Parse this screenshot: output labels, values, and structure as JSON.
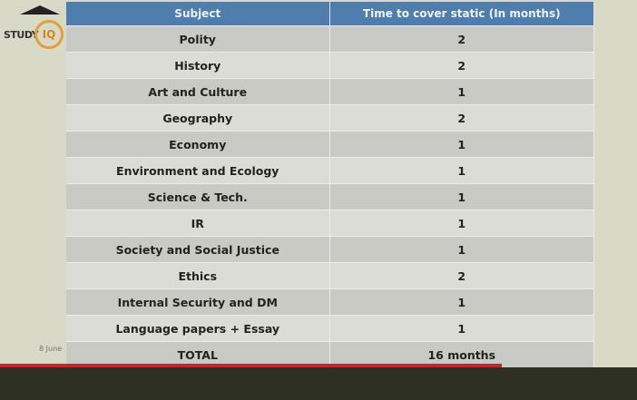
{
  "logo": {
    "text": "STUDY",
    "suffix": "IQ"
  },
  "date": "8 June",
  "table": {
    "header": [
      "Subject",
      "Time to cover static (In months)"
    ],
    "rows": [
      [
        "Polity",
        "2"
      ],
      [
        "History",
        "2"
      ],
      [
        "Art and Culture",
        "1"
      ],
      [
        "Geography",
        "2"
      ],
      [
        "Economy",
        "1"
      ],
      [
        "Environment and Ecology",
        "1"
      ],
      [
        "Science & Tech.",
        "1"
      ],
      [
        "IR",
        "1"
      ],
      [
        "Society  and Social Justice",
        "1"
      ],
      [
        "Ethics",
        "2"
      ],
      [
        "Internal Security and DM",
        "1"
      ],
      [
        "Language papers + Essay",
        "1"
      ],
      [
        "TOTAL",
        "16 months"
      ]
    ]
  }
}
